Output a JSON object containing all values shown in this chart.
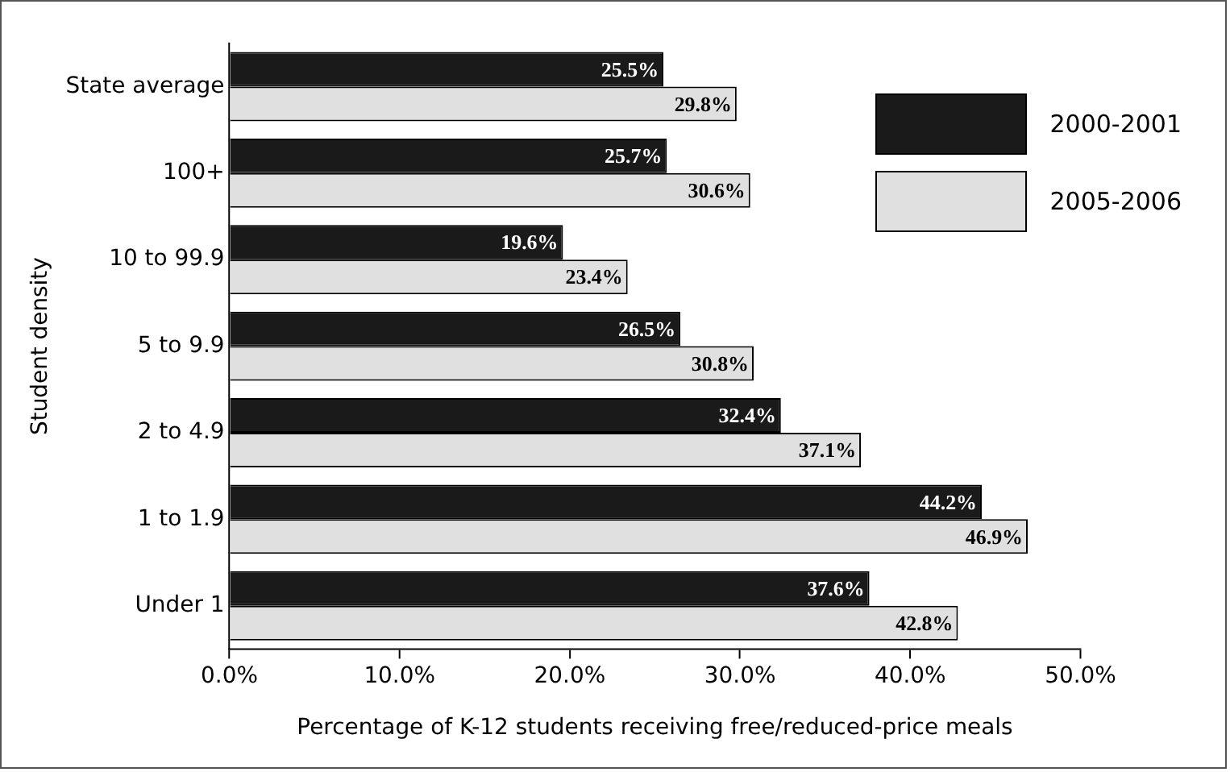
{
  "chart_data": {
    "type": "bar",
    "orientation": "horizontal",
    "xlabel": "Percentage of K-12 students receiving free/reduced-price meals",
    "ylabel": "Student density",
    "categories": [
      "State average",
      "100+",
      "10 to 99.9",
      "5 to 9.9",
      "2 to 4.9",
      "1 to 1.9",
      "Under 1"
    ],
    "series": [
      {
        "name": "2000-2001",
        "color": "#1a1a1a",
        "values": [
          25.5,
          25.7,
          19.6,
          26.5,
          32.4,
          44.2,
          37.6
        ],
        "value_labels": [
          "25.5%",
          "25.7%",
          "19.6%",
          "26.5%",
          "32.4%",
          "44.2%",
          "37.6%"
        ]
      },
      {
        "name": "2005-2006",
        "color": "#e0e0e0",
        "values": [
          29.8,
          30.6,
          23.4,
          30.8,
          37.1,
          46.9,
          42.8
        ],
        "value_labels": [
          "29.8%",
          "30.6%",
          "23.4%",
          "30.8%",
          "37.1%",
          "46.9%",
          "42.8%"
        ]
      }
    ],
    "xlim": [
      0,
      50
    ],
    "xticks": [
      {
        "value": 0,
        "label": "0.0%"
      },
      {
        "value": 10,
        "label": "10.0%"
      },
      {
        "value": 20,
        "label": "20.0%"
      },
      {
        "value": 30,
        "label": "30.0%"
      },
      {
        "value": 40,
        "label": "40.0%"
      },
      {
        "value": 50,
        "label": "50.0%"
      }
    ],
    "grid": false,
    "legend": "top right"
  }
}
